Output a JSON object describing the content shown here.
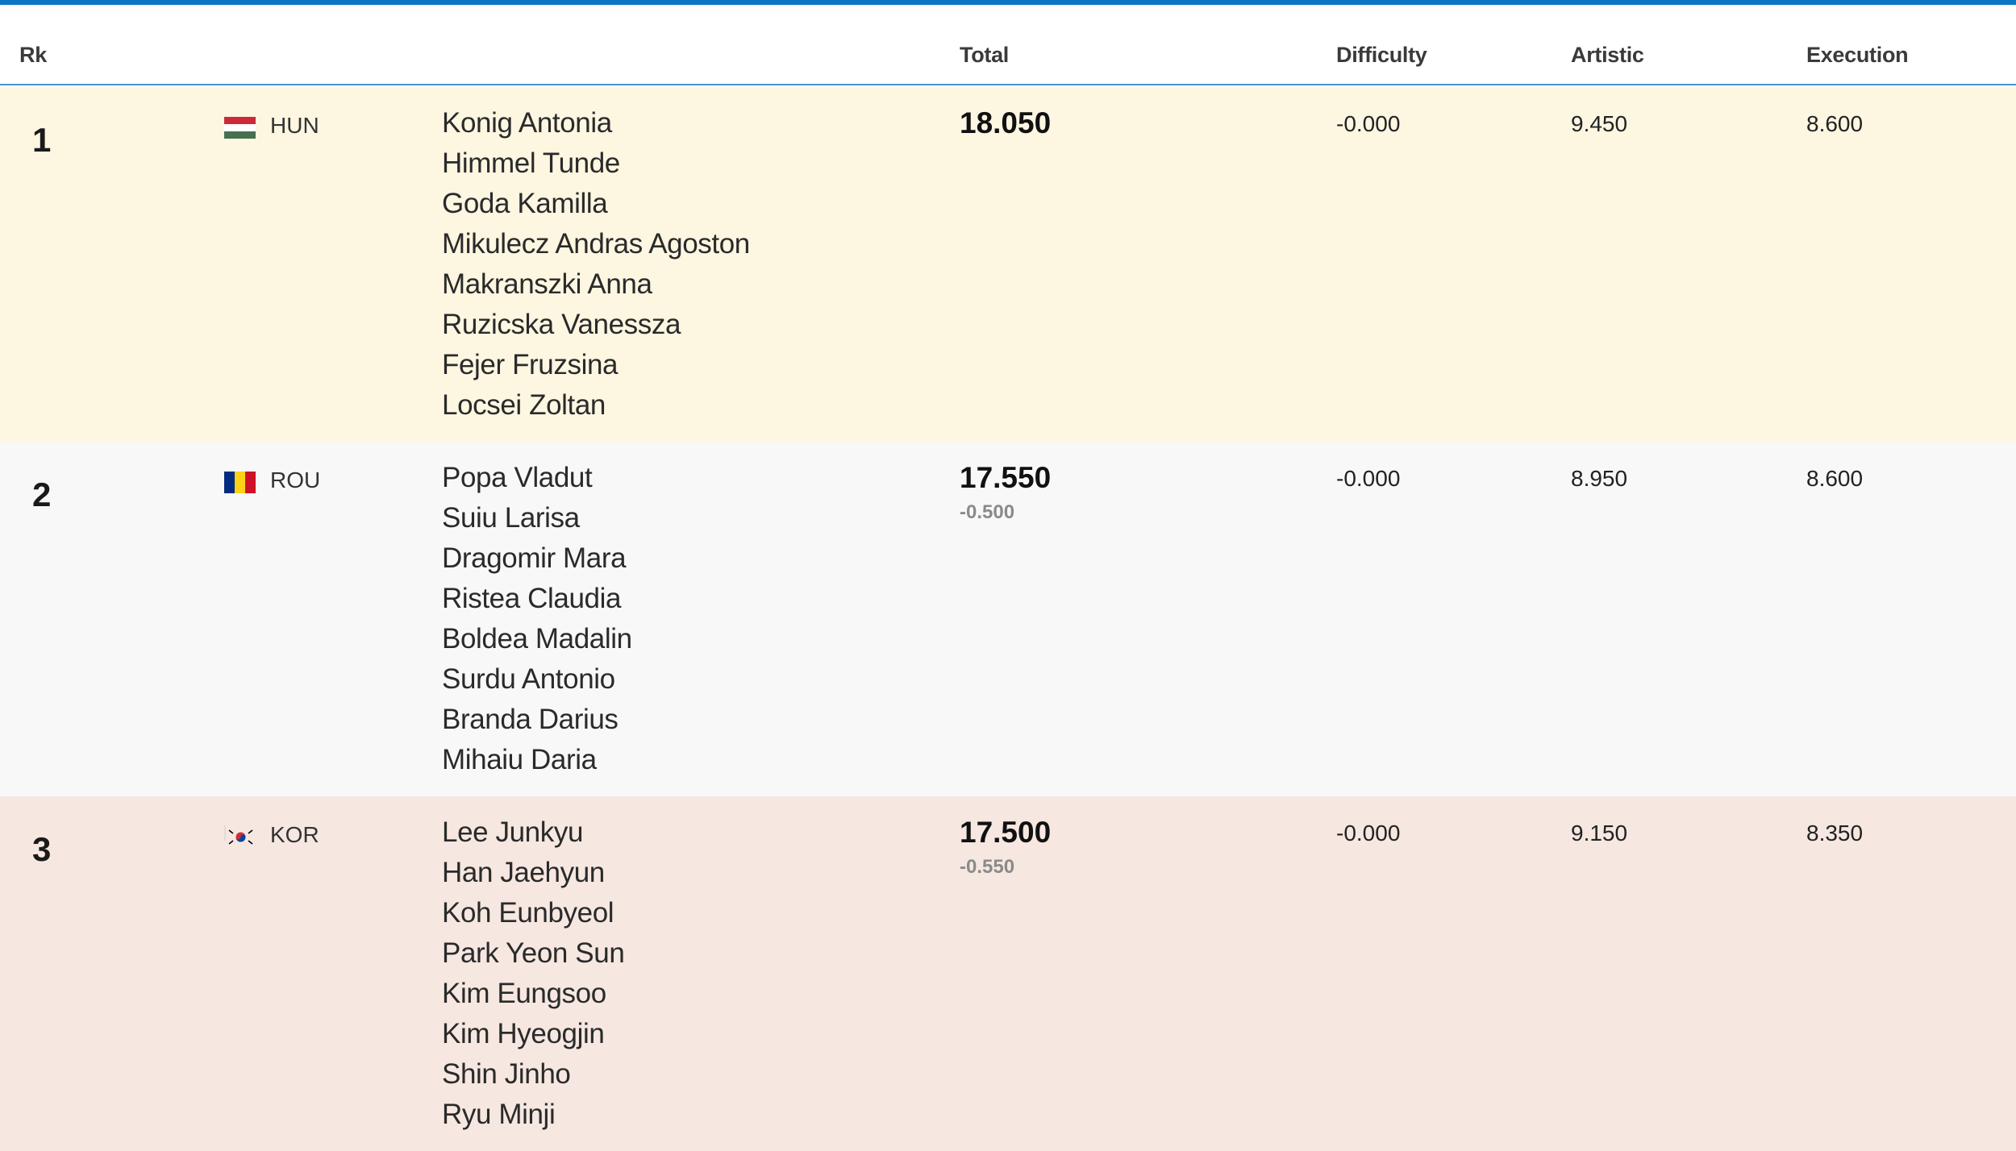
{
  "header": {
    "rank": "Rk",
    "total": "Total",
    "difficulty": "Difficulty",
    "artistic": "Artistic",
    "execution": "Execution"
  },
  "colors": {
    "accent_bar": "#0a78c2",
    "row_1_bg": "#fdf6e1",
    "row_2_bg": "#f8f8f8",
    "row_3_bg": "#f6e7e1"
  },
  "rows": [
    {
      "rank": "1",
      "noc": "HUN",
      "flag_icon": "hungary-flag-icon",
      "athletes": [
        "Konig Antonia",
        "Himmel Tunde",
        "Goda Kamilla",
        "Mikulecz Andras Agoston",
        "Makranszki Anna",
        "Ruzicska Vanessza",
        "Fejer Fruzsina",
        "Locsei Zoltan"
      ],
      "total": "18.050",
      "penalty": "",
      "difficulty": "-0.000",
      "artistic": "9.450",
      "execution": "8.600"
    },
    {
      "rank": "2",
      "noc": "ROU",
      "flag_icon": "romania-flag-icon",
      "athletes": [
        "Popa Vladut",
        "Suiu Larisa",
        "Dragomir Mara",
        "Ristea Claudia",
        "Boldea Madalin",
        "Surdu Antonio",
        "Branda Darius",
        "Mihaiu Daria"
      ],
      "total": "17.550",
      "penalty": "-0.500",
      "difficulty": "-0.000",
      "artistic": "8.950",
      "execution": "8.600"
    },
    {
      "rank": "3",
      "noc": "KOR",
      "flag_icon": "south-korea-flag-icon",
      "athletes": [
        "Lee Junkyu",
        "Han Jaehyun",
        "Koh Eunbyeol",
        "Park Yeon Sun",
        "Kim Eungsoo",
        "Kim Hyeogjin",
        "Shin Jinho",
        "Ryu Minji"
      ],
      "total": "17.500",
      "penalty": "-0.550",
      "difficulty": "-0.000",
      "artistic": "9.150",
      "execution": "8.350"
    }
  ]
}
